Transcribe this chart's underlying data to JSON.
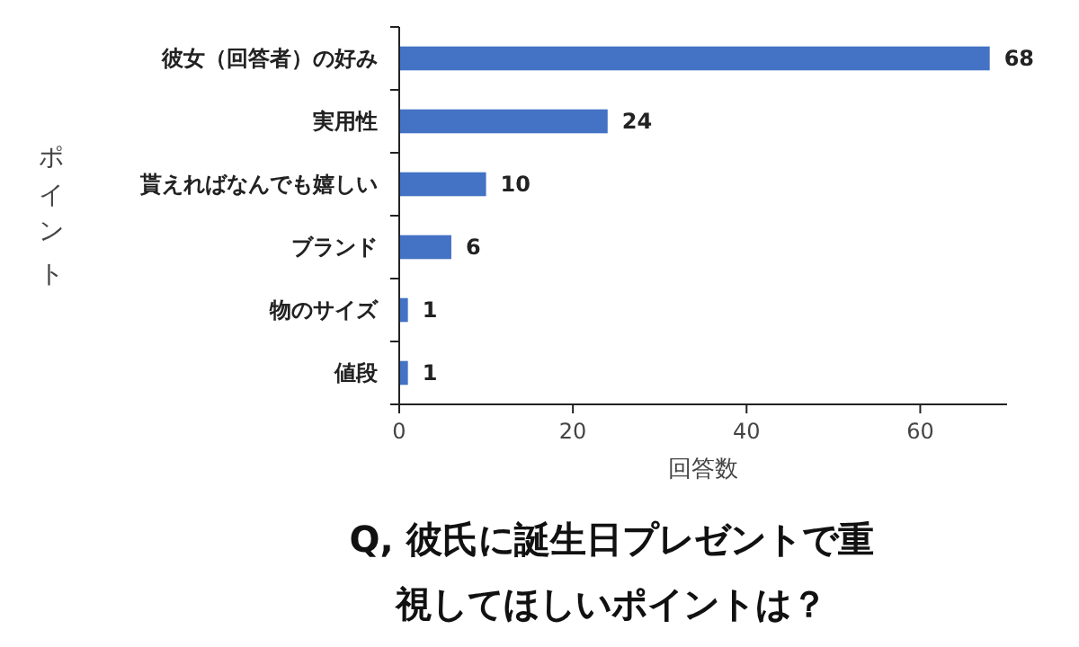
{
  "chart_data": {
    "type": "bar",
    "orientation": "horizontal",
    "title": "Q, 彼氏に誕生日プレゼントで重視してほしいポイントは？",
    "xlabel": "回答数",
    "ylabel": "ポイント",
    "categories": [
      "彼女（回答者）の好み",
      "実用性",
      "貰えればなんでも嬉しい",
      "ブランド",
      "物のサイズ",
      "値段"
    ],
    "values": [
      68,
      24,
      10,
      6,
      1,
      1
    ],
    "color": "#4472c4",
    "xlim": [
      0,
      70
    ],
    "xticks": [
      0,
      20,
      40,
      60
    ],
    "data_labels": true
  }
}
